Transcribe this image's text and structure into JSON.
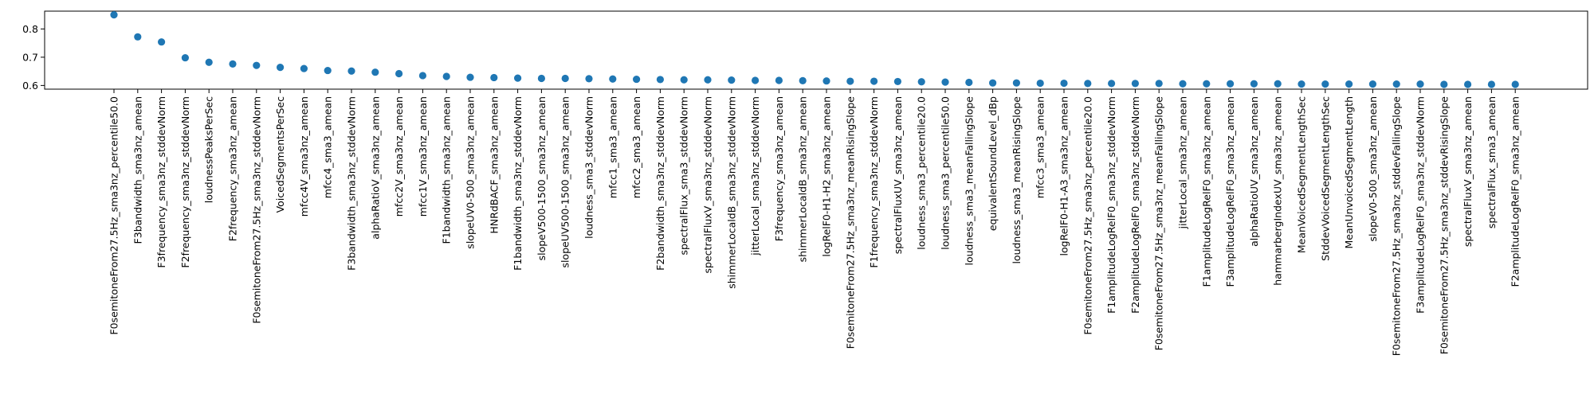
{
  "chart_data": {
    "type": "scatter",
    "title": "",
    "xlabel": "",
    "ylabel": "",
    "grid": false,
    "ylim": [
      0.587,
      0.863
    ],
    "yticks": [
      "0.6",
      "0.7",
      "0.8"
    ],
    "yticks_values": [
      0.6,
      0.7,
      0.8
    ],
    "marker_color": "#1f77b4",
    "categories": [
      "F0semitoneFrom27.5Hz_sma3nz_percentile50.0",
      "F3bandwidth_sma3nz_amean",
      "F3frequency_sma3nz_stddevNorm",
      "F2frequency_sma3nz_stddevNorm",
      "loudnessPeaksPerSec",
      "F2frequency_sma3nz_amean",
      "F0semitoneFrom27.5Hz_sma3nz_stddevNorm",
      "VoicedSegmentsPerSec",
      "mfcc4V_sma3nz_amean",
      "mfcc4_sma3_amean",
      "F3bandwidth_sma3nz_stddevNorm",
      "alphaRatioV_sma3nz_amean",
      "mfcc2V_sma3nz_amean",
      "mfcc1V_sma3nz_amean",
      "F1bandwidth_sma3nz_amean",
      "slopeUV0-500_sma3nz_amean",
      "HNRdBACF_sma3nz_amean",
      "F1bandwidth_sma3nz_stddevNorm",
      "slopeV500-1500_sma3nz_amean",
      "slopeUV500-1500_sma3nz_amean",
      "loudness_sma3_stddevNorm",
      "mfcc1_sma3_amean",
      "mfcc2_sma3_amean",
      "F2bandwidth_sma3nz_stddevNorm",
      "spectralFlux_sma3_stddevNorm",
      "spectralFluxV_sma3nz_stddevNorm",
      "shimmerLocaldB_sma3nz_stddevNorm",
      "jitterLocal_sma3nz_stddevNorm",
      "F3frequency_sma3nz_amean",
      "shimmerLocaldB_sma3nz_amean",
      "logRelF0-H1-H2_sma3nz_amean",
      "F0semitoneFrom27.5Hz_sma3nz_meanRisingSlope",
      "F1frequency_sma3nz_stddevNorm",
      "spectralFluxUV_sma3nz_amean",
      "loudness_sma3_percentile20.0",
      "loudness_sma3_percentile50.0",
      "loudness_sma3_meanFallingSlope",
      "equivalentSoundLevel_dBp",
      "loudness_sma3_meanRisingSlope",
      "mfcc3_sma3_amean",
      "logRelF0-H1-A3_sma3nz_amean",
      "F0semitoneFrom27.5Hz_sma3nz_percentile20.0",
      "F1amplitudeLogRelF0_sma3nz_stddevNorm",
      "F2amplitudeLogRelF0_sma3nz_stddevNorm",
      "F0semitoneFrom27.5Hz_sma3nz_meanFallingSlope",
      "jitterLocal_sma3nz_amean",
      "F1amplitudeLogRelF0_sma3nz_amean",
      "F3amplitudeLogRelF0_sma3nz_amean",
      "alphaRatioUV_sma3nz_amean",
      "hammarbergIndexUV_sma3nz_amean",
      "MeanVoicedSegmentLengthSec",
      "StddevVoicedSegmentLengthSec",
      "MeanUnvoicedSegmentLength",
      "slopeV0-500_sma3nz_amean",
      "F0semitoneFrom27.5Hz_sma3nz_stddevFallingSlope",
      "F3amplitudeLogRelF0_sma3nz_stddevNorm",
      "F0semitoneFrom27.5Hz_sma3nz_stddevRisingSlope",
      "spectralFluxV_sma3nz_amean",
      "spectralFlux_sma3_amean",
      "F2amplitudeLogRelF0_sma3nz_amean"
    ],
    "values": [
      0.85,
      0.772,
      0.754,
      0.698,
      0.682,
      0.676,
      0.671,
      0.664,
      0.66,
      0.653,
      0.651,
      0.647,
      0.642,
      0.635,
      0.632,
      0.629,
      0.628,
      0.626,
      0.625,
      0.625,
      0.624,
      0.623,
      0.622,
      0.621,
      0.62,
      0.62,
      0.619,
      0.618,
      0.618,
      0.617,
      0.616,
      0.615,
      0.615,
      0.614,
      0.613,
      0.612,
      0.611,
      0.609,
      0.609,
      0.608,
      0.608,
      0.607,
      0.607,
      0.607,
      0.607,
      0.606,
      0.606,
      0.606,
      0.606,
      0.606,
      0.605,
      0.605,
      0.605,
      0.605,
      0.605,
      0.605,
      0.604,
      0.604,
      0.604,
      0.604
    ]
  }
}
